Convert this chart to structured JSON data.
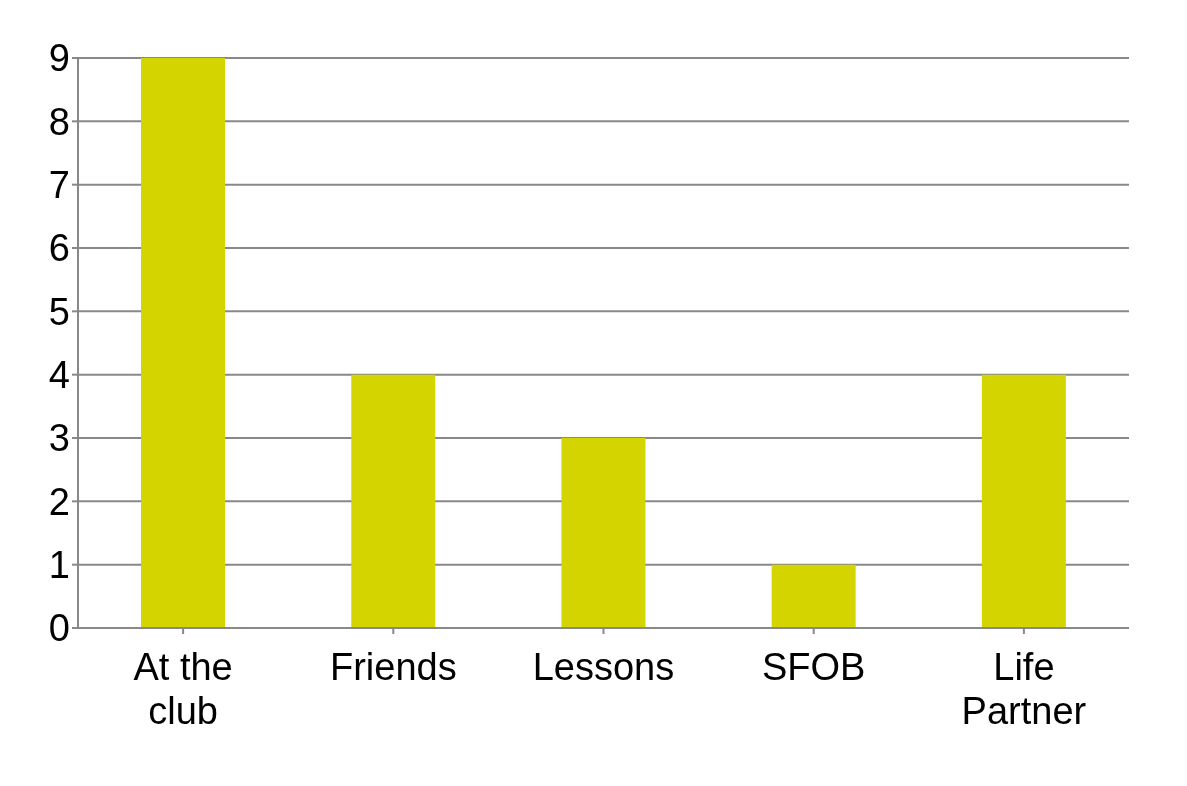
{
  "chart_data": {
    "type": "bar",
    "categories": [
      "At the club",
      "Friends",
      "Lessons",
      "SFOB",
      "Life Partner"
    ],
    "values": [
      9,
      4,
      3,
      1,
      4
    ],
    "color": "#d4d400",
    "ylim": [
      0,
      9
    ],
    "yticks": [
      0,
      1,
      2,
      3,
      4,
      5,
      6,
      7,
      8,
      9
    ],
    "grid": "y"
  }
}
